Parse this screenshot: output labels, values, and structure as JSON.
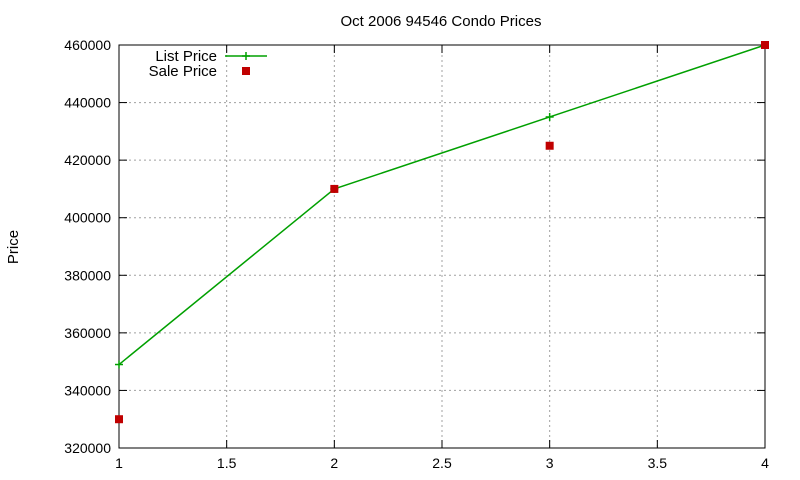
{
  "chart_data": {
    "type": "line",
    "title": "Oct 2006 94546 Condo Prices",
    "xlabel": "",
    "ylabel": "Price",
    "xlim": [
      1,
      4
    ],
    "ylim": [
      320000,
      460000
    ],
    "x_ticks": [
      "1",
      "1.5",
      "2",
      "2.5",
      "3",
      "3.5",
      "4"
    ],
    "y_ticks": [
      "320000",
      "340000",
      "360000",
      "380000",
      "400000",
      "420000",
      "440000",
      "460000"
    ],
    "grid": true,
    "legend_position": "top-left",
    "series": [
      {
        "name": "List Price",
        "style": "line-with-plus-markers",
        "color": "#00a000",
        "x": [
          1,
          2,
          3,
          4
        ],
        "y": [
          349000,
          410000,
          435000,
          460000
        ]
      },
      {
        "name": "Sale Price",
        "style": "square-markers",
        "color": "#c00000",
        "x": [
          1,
          2,
          3,
          4
        ],
        "y": [
          330000,
          410000,
          425000,
          460000
        ]
      }
    ]
  }
}
